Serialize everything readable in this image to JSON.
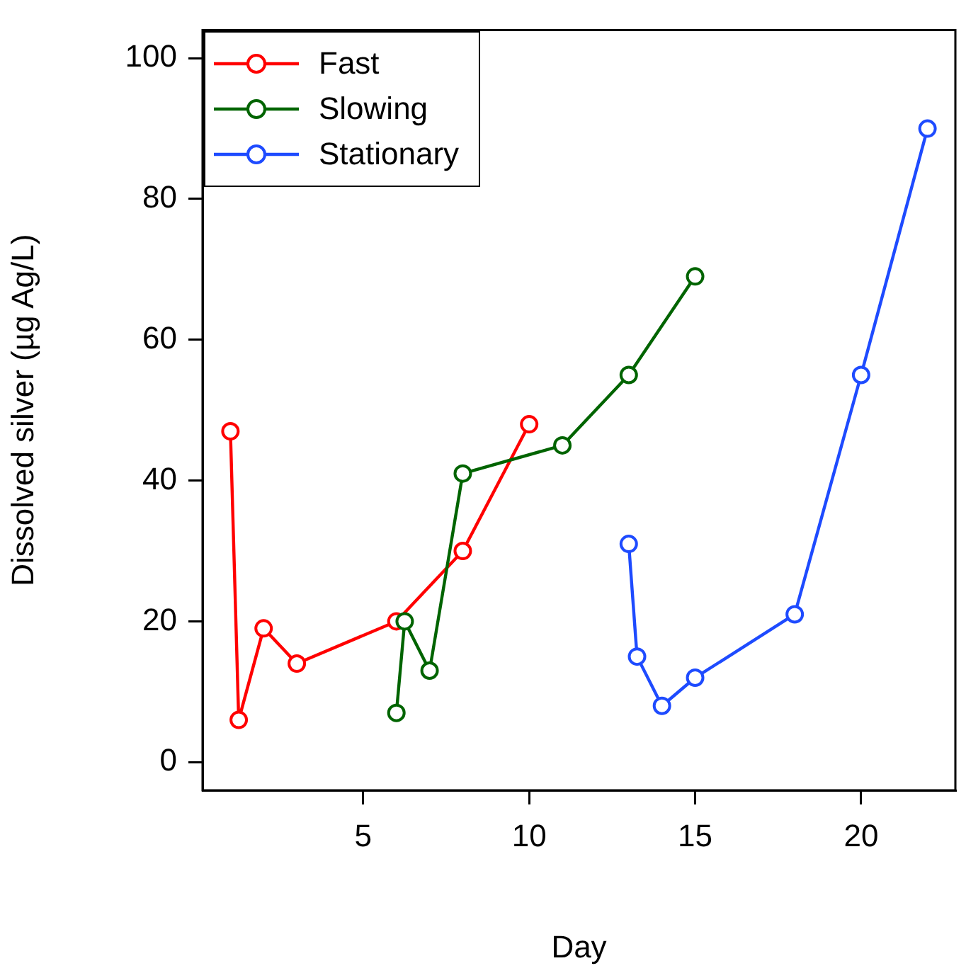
{
  "chart_data": {
    "type": "line",
    "xlabel": "Day",
    "ylabel": "Dissolved silver (µg Ag/L)",
    "xlim": [
      0.16,
      22.84
    ],
    "xticks": [
      5,
      10,
      15,
      20
    ],
    "ylim": [
      -4,
      104
    ],
    "yticks": [
      0,
      20,
      40,
      60,
      80,
      100
    ],
    "grid": false,
    "legend": "top left",
    "marker": "circle",
    "line_style": "solid",
    "series": [
      {
        "name": "Fast",
        "color": "#ff0000",
        "x": [
          1,
          1.25,
          2,
          3,
          6,
          8,
          10
        ],
        "values": [
          47,
          6,
          19,
          14,
          20,
          30,
          48
        ]
      },
      {
        "name": "Slowing",
        "color": "#006400",
        "x": [
          6,
          6.25,
          7,
          8,
          11,
          13,
          15
        ],
        "values": [
          7,
          20,
          13,
          41,
          45,
          55,
          69
        ]
      },
      {
        "name": "Stationary",
        "color": "#1e4bff",
        "x": [
          13,
          13.25,
          14,
          15,
          18,
          20,
          22
        ],
        "values": [
          31,
          15,
          8,
          12,
          21,
          55,
          90
        ]
      }
    ]
  }
}
